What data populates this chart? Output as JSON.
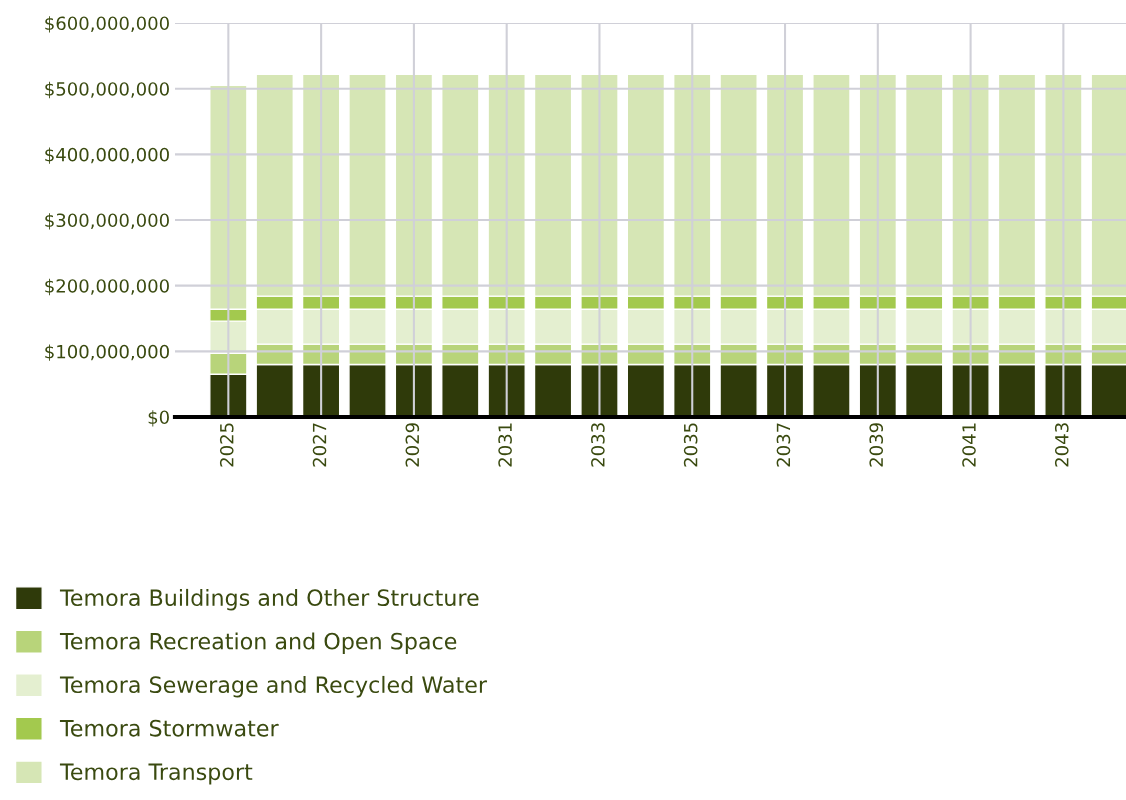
{
  "chart_data": {
    "type": "bar",
    "stacked": true,
    "categories": [
      "2025",
      null,
      "2027",
      null,
      "2029",
      null,
      "2031",
      null,
      "2033",
      null,
      "2035",
      null,
      "2037",
      null,
      "2039",
      null,
      "2041",
      null,
      "2043",
      null
    ],
    "series": [
      {
        "name": "Temora Buildings and Other Structure",
        "color": "#2f3a0a",
        "values": [
          65000000,
          80000000,
          80000000,
          80000000,
          80000000,
          80000000,
          80000000,
          80000000,
          80000000,
          80000000,
          80000000,
          80000000,
          80000000,
          80000000,
          80000000,
          80000000,
          80000000,
          80000000,
          80000000,
          80000000
        ]
      },
      {
        "name": "Temora Recreation and Open Space",
        "color": "#b8d47a",
        "values": [
          32000000,
          31000000,
          31000000,
          31000000,
          31000000,
          31000000,
          31000000,
          31000000,
          31000000,
          31000000,
          31000000,
          31000000,
          31000000,
          31000000,
          31000000,
          31000000,
          31000000,
          31000000,
          31000000,
          31000000
        ]
      },
      {
        "name": "Temora Sewerage and Recycled Water",
        "color": "#e4efd0",
        "values": [
          49000000,
          53000000,
          53000000,
          53000000,
          53000000,
          53000000,
          53000000,
          53000000,
          53000000,
          53000000,
          53000000,
          53000000,
          53000000,
          53000000,
          53000000,
          53000000,
          53000000,
          53000000,
          53000000,
          53000000
        ]
      },
      {
        "name": "Temora Stormwater",
        "color": "#a3c94e",
        "values": [
          18000000,
          20000000,
          20000000,
          20000000,
          20000000,
          20000000,
          20000000,
          20000000,
          20000000,
          20000000,
          20000000,
          20000000,
          20000000,
          20000000,
          20000000,
          20000000,
          20000000,
          20000000,
          20000000,
          20000000
        ]
      },
      {
        "name": "Temora Transport",
        "color": "#d6e6b5",
        "values": [
          341000000,
          338000000,
          338000000,
          338000000,
          338000000,
          338000000,
          338000000,
          338000000,
          338000000,
          338000000,
          338000000,
          338000000,
          338000000,
          338000000,
          338000000,
          338000000,
          338000000,
          338000000,
          338000000,
          338000000
        ]
      }
    ],
    "ylim": [
      0,
      600000000
    ],
    "yticks": [
      {
        "value": 0,
        "label": "$0"
      },
      {
        "value": 100000000,
        "label": "$100,000,000"
      },
      {
        "value": 200000000,
        "label": "$200,000,000"
      },
      {
        "value": 300000000,
        "label": "$300,000,000"
      },
      {
        "value": 400000000,
        "label": "$400,000,000"
      },
      {
        "value": 500000000,
        "label": "$500,000,000"
      },
      {
        "value": 600000000,
        "label": "$600,000,000"
      }
    ],
    "grid": true,
    "legend": "bottom"
  }
}
